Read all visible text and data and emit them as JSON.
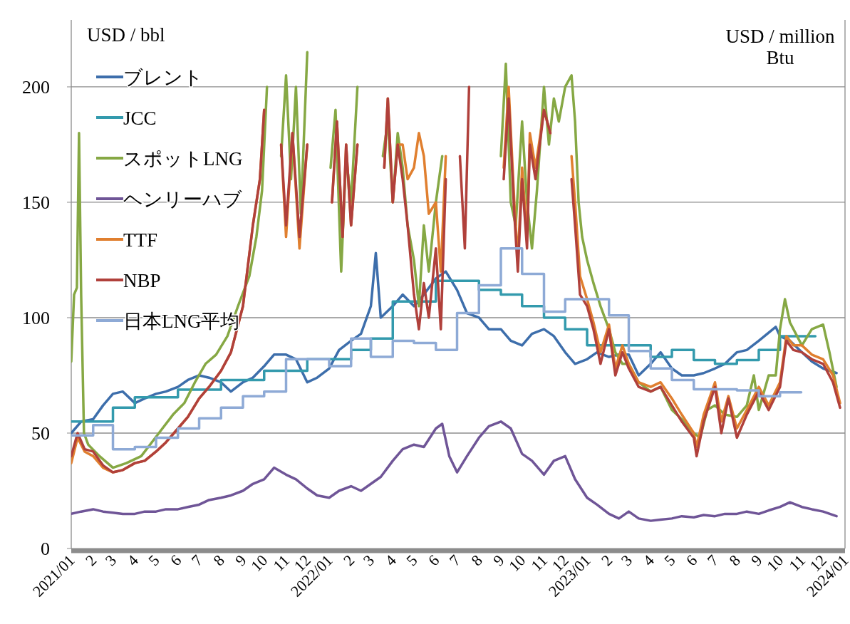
{
  "chart_data": {
    "type": "line",
    "ylabel": "USD  / bbl",
    "annotations": [
      "USD / million Btu"
    ],
    "ylim": [
      0,
      229
    ],
    "yticks": [
      0,
      50,
      100,
      150,
      200
    ],
    "xlim": [
      "2021-01-01",
      "2024-01-01"
    ],
    "xticks": [
      {
        "value": "2021-01",
        "label": "2021/01"
      },
      {
        "value": "2021-02",
        "label": "2"
      },
      {
        "value": "2021-03",
        "label": "3"
      },
      {
        "value": "2021-04",
        "label": "4"
      },
      {
        "value": "2021-05",
        "label": "5"
      },
      {
        "value": "2021-06",
        "label": "6"
      },
      {
        "value": "2021-07",
        "label": "7"
      },
      {
        "value": "2021-08",
        "label": "8"
      },
      {
        "value": "2021-09",
        "label": "9"
      },
      {
        "value": "2021-10",
        "label": "10"
      },
      {
        "value": "2021-11",
        "label": "11"
      },
      {
        "value": "2021-12",
        "label": "12"
      },
      {
        "value": "2022-01",
        "label": "2022/01"
      },
      {
        "value": "2022-02",
        "label": "2"
      },
      {
        "value": "2022-03",
        "label": "3"
      },
      {
        "value": "2022-04",
        "label": "4"
      },
      {
        "value": "2022-05",
        "label": "5"
      },
      {
        "value": "2022-06",
        "label": "6"
      },
      {
        "value": "2022-07",
        "label": "7"
      },
      {
        "value": "2022-08",
        "label": "8"
      },
      {
        "value": "2022-09",
        "label": "9"
      },
      {
        "value": "2022-10",
        "label": "10"
      },
      {
        "value": "2022-11",
        "label": "11"
      },
      {
        "value": "2022-12",
        "label": "12"
      },
      {
        "value": "2023-01",
        "label": "2023/01"
      },
      {
        "value": "2023-02",
        "label": "2"
      },
      {
        "value": "2023-03",
        "label": "3"
      },
      {
        "value": "2023-04",
        "label": "4"
      },
      {
        "value": "2023-05",
        "label": "5"
      },
      {
        "value": "2023-06",
        "label": "6"
      },
      {
        "value": "2023-07",
        "label": "7"
      },
      {
        "value": "2023-08",
        "label": "8"
      },
      {
        "value": "2023-09",
        "label": "9"
      },
      {
        "value": "2023-10",
        "label": "10"
      },
      {
        "value": "2023-11",
        "label": "11"
      },
      {
        "value": "2023-12",
        "label": "12"
      },
      {
        "value": "2024-01",
        "label": "2024/01"
      }
    ],
    "grid": "y",
    "legend": "top left",
    "series": [
      {
        "name": "ブレント",
        "color": "#3d6eab",
        "type": "line",
        "x": [
          "2021-01-01",
          "2021-01-15",
          "2021-02-01",
          "2021-02-15",
          "2021-03-01",
          "2021-03-15",
          "2021-04-01",
          "2021-04-15",
          "2021-05-01",
          "2021-05-15",
          "2021-06-01",
          "2021-06-15",
          "2021-07-01",
          "2021-07-15",
          "2021-08-01",
          "2021-08-15",
          "2021-09-01",
          "2021-09-15",
          "2021-10-01",
          "2021-10-15",
          "2021-11-01",
          "2021-11-15",
          "2021-12-01",
          "2021-12-15",
          "2022-01-01",
          "2022-01-15",
          "2022-02-01",
          "2022-02-15",
          "2022-03-01",
          "2022-03-08",
          "2022-03-15",
          "2022-04-01",
          "2022-04-15",
          "2022-05-01",
          "2022-05-15",
          "2022-06-01",
          "2022-06-15",
          "2022-07-01",
          "2022-07-15",
          "2022-08-01",
          "2022-08-15",
          "2022-09-01",
          "2022-09-15",
          "2022-10-01",
          "2022-10-15",
          "2022-11-01",
          "2022-11-15",
          "2022-12-01",
          "2022-12-15",
          "2023-01-01",
          "2023-01-15",
          "2023-02-01",
          "2023-02-15",
          "2023-03-01",
          "2023-03-15",
          "2023-04-01",
          "2023-04-15",
          "2023-05-01",
          "2023-05-15",
          "2023-06-01",
          "2023-06-15",
          "2023-07-01",
          "2023-07-15",
          "2023-08-01",
          "2023-08-15",
          "2023-09-01",
          "2023-09-25",
          "2023-10-01",
          "2023-10-15",
          "2023-11-01",
          "2023-11-15",
          "2023-12-01",
          "2023-12-20"
        ],
        "values": [
          50,
          55,
          56,
          62,
          67,
          68,
          63,
          65,
          67,
          68,
          70,
          73,
          75,
          74,
          72,
          68,
          72,
          74,
          79,
          84,
          84,
          82,
          72,
          74,
          78,
          86,
          90,
          93,
          105,
          128,
          100,
          105,
          110,
          105,
          110,
          117,
          120,
          112,
          102,
          100,
          95,
          95,
          90,
          88,
          93,
          95,
          92,
          85,
          80,
          82,
          85,
          83,
          84,
          84,
          75,
          80,
          85,
          78,
          75,
          75,
          76,
          78,
          80,
          85,
          86,
          90,
          96,
          92,
          90,
          85,
          81,
          78,
          76
        ]
      },
      {
        "name": "JCC",
        "color": "#339aad",
        "type": "step",
        "x": [
          "2021-01-01",
          "2021-02-01",
          "2021-03-01",
          "2021-04-01",
          "2021-05-01",
          "2021-06-01",
          "2021-07-01",
          "2021-08-01",
          "2021-09-01",
          "2021-10-01",
          "2021-11-01",
          "2021-12-01",
          "2022-01-01",
          "2022-02-01",
          "2022-03-01",
          "2022-04-01",
          "2022-05-01",
          "2022-06-01",
          "2022-07-01",
          "2022-08-01",
          "2022-09-01",
          "2022-10-01",
          "2022-11-01",
          "2022-12-01",
          "2023-01-01",
          "2023-02-01",
          "2023-03-01",
          "2023-04-01",
          "2023-05-01",
          "2023-06-01",
          "2023-07-01",
          "2023-08-01",
          "2023-09-01",
          "2023-10-01",
          "2023-11-01",
          "2023-11-20"
        ],
        "values": [
          55,
          55,
          61,
          65.5,
          65.5,
          68.8,
          68.8,
          73,
          73,
          77,
          77,
          82,
          82,
          86,
          91,
          107,
          107,
          116,
          116,
          112,
          110,
          105,
          100,
          95,
          88,
          88,
          88,
          83,
          86,
          81.6,
          80,
          81.6,
          86,
          92,
          92,
          92
        ]
      },
      {
        "name": "スポットLNG",
        "color": "#86a844",
        "type": "line",
        "x": [
          "2021-01-01",
          "2021-01-05",
          "2021-01-09",
          "2021-01-12",
          "2021-01-15",
          "2021-01-19",
          "2021-01-25",
          "2021-02-10",
          "2021-03-01",
          "2021-03-20",
          "2021-04-10",
          "2021-04-25",
          "2021-05-10",
          "2021-05-25",
          "2021-06-10",
          "2021-06-25",
          "2021-07-10",
          "2021-07-25",
          "2021-08-10",
          "2021-08-25",
          "2021-09-10",
          "2021-09-20",
          "2021-09-28",
          "2021-10-05",
          "2021-10-08",
          "2021-10-12",
          "2021-10-18",
          "2021-10-25",
          "2021-11-01",
          "2021-11-08",
          "2021-11-15",
          "2021-11-22",
          "2021-12-01",
          "2021-12-08",
          "2021-12-15",
          "2021-12-25",
          "2022-01-03",
          "2022-01-10",
          "2022-01-18",
          "2022-01-25",
          "2022-02-01",
          "2022-02-10",
          "2022-02-18",
          "2022-03-01",
          "2022-03-10",
          "2022-03-18",
          "2022-03-25",
          "2022-04-01",
          "2022-04-08",
          "2022-04-15",
          "2022-04-22",
          "2022-05-01",
          "2022-05-08",
          "2022-05-15",
          "2022-05-22",
          "2022-06-01",
          "2022-06-10",
          "2022-06-18",
          "2022-07-01",
          "2022-08-25",
          "2022-09-01",
          "2022-09-08",
          "2022-09-15",
          "2022-09-22",
          "2022-10-01",
          "2022-10-08",
          "2022-10-15",
          "2022-10-22",
          "2022-11-01",
          "2022-11-08",
          "2022-11-15",
          "2022-11-22",
          "2022-12-01",
          "2022-12-10",
          "2022-12-15",
          "2022-12-20",
          "2022-12-25",
          "2023-01-01",
          "2023-01-10",
          "2023-01-20",
          "2023-02-01",
          "2023-02-10",
          "2023-02-20",
          "2023-03-01",
          "2023-03-15",
          "2023-04-01",
          "2023-04-15",
          "2023-05-01",
          "2023-05-15",
          "2023-06-01",
          "2023-06-10",
          "2023-06-20",
          "2023-07-01",
          "2023-07-15",
          "2023-08-01",
          "2023-08-15",
          "2023-08-25",
          "2023-09-01",
          "2023-09-15",
          "2023-09-25",
          "2023-10-01",
          "2023-10-08",
          "2023-10-15",
          "2023-11-01",
          "2023-11-15",
          "2023-12-01",
          "2023-12-10",
          "2023-12-20"
        ],
        "values": [
          81,
          110,
          113,
          180,
          110,
          50,
          45,
          40,
          35,
          37,
          40,
          46,
          52,
          58,
          63,
          72,
          80,
          84,
          92,
          105,
          118,
          135,
          155,
          200,
          null,
          null,
          null,
          170,
          205,
          160,
          200,
          145,
          215,
          null,
          null,
          null,
          165,
          190,
          120,
          170,
          150,
          200,
          null,
          null,
          null,
          170,
          185,
          150,
          180,
          165,
          140,
          125,
          105,
          140,
          120,
          150,
          170,
          null,
          null,
          null,
          170,
          210,
          150,
          140,
          185,
          150,
          130,
          155,
          200,
          175,
          195,
          185,
          200,
          205,
          185,
          150,
          135,
          125,
          115,
          105,
          95,
          85,
          80,
          80,
          72,
          68,
          70,
          60,
          56,
          50,
          48,
          60,
          62,
          58,
          57,
          62,
          75,
          60,
          75,
          75,
          95,
          108,
          98,
          88,
          95,
          97,
          85,
          70
        ]
      },
      {
        "name": "ヘンリーハブ",
        "color": "#6f5597",
        "type": "line",
        "x": [
          "2021-01-01",
          "2021-01-15",
          "2021-02-01",
          "2021-02-15",
          "2021-03-01",
          "2021-03-15",
          "2021-04-01",
          "2021-04-15",
          "2021-05-01",
          "2021-05-15",
          "2021-06-01",
          "2021-06-15",
          "2021-07-01",
          "2021-07-15",
          "2021-08-01",
          "2021-08-15",
          "2021-09-01",
          "2021-09-15",
          "2021-10-01",
          "2021-10-15",
          "2021-11-01",
          "2021-11-15",
          "2021-12-01",
          "2021-12-15",
          "2022-01-01",
          "2022-01-15",
          "2022-02-01",
          "2022-02-15",
          "2022-03-01",
          "2022-03-15",
          "2022-04-01",
          "2022-04-15",
          "2022-05-01",
          "2022-05-15",
          "2022-06-01",
          "2022-06-10",
          "2022-06-20",
          "2022-07-01",
          "2022-07-15",
          "2022-08-01",
          "2022-08-15",
          "2022-09-01",
          "2022-09-15",
          "2022-10-01",
          "2022-10-15",
          "2022-11-01",
          "2022-11-15",
          "2022-12-01",
          "2022-12-15",
          "2023-01-01",
          "2023-01-15",
          "2023-02-01",
          "2023-02-15",
          "2023-03-01",
          "2023-03-15",
          "2023-04-01",
          "2023-04-15",
          "2023-05-01",
          "2023-05-15",
          "2023-06-01",
          "2023-06-15",
          "2023-07-01",
          "2023-07-15",
          "2023-08-01",
          "2023-08-15",
          "2023-09-01",
          "2023-09-15",
          "2023-10-01",
          "2023-10-15",
          "2023-11-01",
          "2023-11-15",
          "2023-12-01",
          "2023-12-20"
        ],
        "values": [
          15,
          16,
          17,
          16,
          15.5,
          15,
          15,
          16,
          16,
          17,
          17,
          18,
          19,
          21,
          22,
          23,
          25,
          28,
          30,
          35,
          32,
          30,
          26,
          23,
          22,
          25,
          27,
          25,
          28,
          31,
          38,
          43,
          45,
          44,
          52,
          54,
          40,
          33,
          40,
          48,
          53,
          55,
          52,
          41,
          38,
          32,
          38,
          40,
          30,
          22,
          19,
          15,
          13,
          16,
          13,
          12,
          12.5,
          13,
          14,
          13.5,
          14.5,
          14,
          15,
          15,
          16,
          15,
          16.5,
          18,
          20,
          18,
          17,
          16,
          14
        ]
      },
      {
        "name": "TTF",
        "color": "#e07f2f",
        "type": "line",
        "x": [
          "2021-01-01",
          "2021-01-10",
          "2021-01-20",
          "2021-02-01",
          "2021-02-15",
          "2021-03-01",
          "2021-03-15",
          "2021-04-01",
          "2021-04-15",
          "2021-05-01",
          "2021-05-15",
          "2021-06-01",
          "2021-06-15",
          "2021-07-01",
          "2021-07-15",
          "2021-08-01",
          "2021-08-15",
          "2021-09-01",
          "2021-09-15",
          "2021-09-25",
          "2021-10-01",
          "2021-10-06",
          "2021-10-12",
          "2021-10-20",
          "2021-10-25",
          "2021-11-01",
          "2021-11-10",
          "2021-11-20",
          "2021-12-01",
          "2021-12-08",
          "2021-12-18",
          "2021-12-28",
          "2022-01-05",
          "2022-01-12",
          "2022-01-20",
          "2022-01-25",
          "2022-02-01",
          "2022-02-10",
          "2022-02-18",
          "2022-03-01",
          "2022-03-15",
          "2022-03-20",
          "2022-03-25",
          "2022-04-01",
          "2022-04-08",
          "2022-04-15",
          "2022-04-22",
          "2022-05-01",
          "2022-05-08",
          "2022-05-15",
          "2022-05-22",
          "2022-06-01",
          "2022-06-08",
          "2022-06-15",
          "2022-06-18",
          "2022-07-10",
          "2022-08-30",
          "2022-09-05",
          "2022-09-12",
          "2022-09-20",
          "2022-09-25",
          "2022-10-01",
          "2022-10-08",
          "2022-10-12",
          "2022-10-20",
          "2022-11-01",
          "2022-11-10",
          "2022-11-15",
          "2022-11-25",
          "2022-12-05",
          "2022-12-10",
          "2022-12-15",
          "2022-12-22",
          "2023-01-01",
          "2023-01-10",
          "2023-01-20",
          "2023-02-01",
          "2023-02-10",
          "2023-02-20",
          "2023-03-01",
          "2023-03-15",
          "2023-04-01",
          "2023-04-15",
          "2023-05-01",
          "2023-05-15",
          "2023-06-01",
          "2023-06-05",
          "2023-06-15",
          "2023-07-01",
          "2023-07-10",
          "2023-07-20",
          "2023-08-01",
          "2023-08-15",
          "2023-09-01",
          "2023-09-15",
          "2023-10-01",
          "2023-10-10",
          "2023-10-20",
          "2023-11-01",
          "2023-11-15",
          "2023-12-01",
          "2023-12-15",
          "2023-12-25"
        ],
        "values": [
          37,
          48,
          42,
          40,
          35,
          33,
          34,
          37,
          38,
          42,
          46,
          52,
          57,
          65,
          70,
          77,
          85,
          105,
          140,
          160,
          190,
          null,
          null,
          null,
          175,
          135,
          180,
          130,
          175,
          null,
          null,
          null,
          150,
          185,
          135,
          175,
          140,
          175,
          null,
          null,
          null,
          165,
          195,
          150,
          175,
          175,
          160,
          165,
          180,
          170,
          145,
          150,
          120,
          170,
          null,
          null,
          null,
          165,
          200,
          150,
          125,
          165,
          135,
          180,
          165,
          190,
          180,
          null,
          null,
          null,
          170,
          150,
          118,
          108,
          98,
          85,
          97,
          78,
          88,
          80,
          72,
          70,
          72,
          65,
          58,
          50,
          44,
          58,
          72,
          55,
          66,
          52,
          60,
          70,
          62,
          72,
          92,
          88,
          88,
          84,
          82,
          75,
          63
        ]
      },
      {
        "name": "NBP",
        "color": "#b0403b",
        "type": "line",
        "x": [
          "2021-01-01",
          "2021-01-10",
          "2021-01-20",
          "2021-02-01",
          "2021-02-15",
          "2021-03-01",
          "2021-03-15",
          "2021-04-01",
          "2021-04-15",
          "2021-05-01",
          "2021-05-15",
          "2021-06-01",
          "2021-06-15",
          "2021-07-01",
          "2021-07-15",
          "2021-08-01",
          "2021-08-15",
          "2021-09-01",
          "2021-09-15",
          "2021-09-25",
          "2021-10-01",
          "2021-10-06",
          "2021-10-12",
          "2021-10-20",
          "2021-10-25",
          "2021-11-01",
          "2021-11-10",
          "2021-11-20",
          "2021-12-01",
          "2021-12-08",
          "2021-12-18",
          "2021-12-28",
          "2022-01-05",
          "2022-01-12",
          "2022-01-20",
          "2022-01-25",
          "2022-02-01",
          "2022-02-10",
          "2022-02-18",
          "2022-03-01",
          "2022-03-15",
          "2022-03-20",
          "2022-03-25",
          "2022-04-01",
          "2022-04-08",
          "2022-04-15",
          "2022-04-22",
          "2022-05-01",
          "2022-05-08",
          "2022-05-15",
          "2022-05-22",
          "2022-06-01",
          "2022-06-08",
          "2022-06-15",
          "2022-06-20",
          "2022-06-24",
          "2022-06-28",
          "2022-07-05",
          "2022-07-12",
          "2022-07-18",
          "2022-07-25",
          "2022-08-15",
          "2022-09-01",
          "2022-09-05",
          "2022-09-12",
          "2022-09-20",
          "2022-09-25",
          "2022-10-01",
          "2022-10-08",
          "2022-10-12",
          "2022-10-20",
          "2022-11-01",
          "2022-11-10",
          "2022-11-15",
          "2022-11-25",
          "2022-12-05",
          "2022-12-10",
          "2022-12-15",
          "2022-12-22",
          "2023-01-01",
          "2023-01-10",
          "2023-01-20",
          "2023-02-01",
          "2023-02-10",
          "2023-02-20",
          "2023-03-01",
          "2023-03-15",
          "2023-04-01",
          "2023-04-15",
          "2023-05-01",
          "2023-05-15",
          "2023-06-01",
          "2023-06-05",
          "2023-06-15",
          "2023-07-01",
          "2023-07-10",
          "2023-07-20",
          "2023-08-01",
          "2023-08-15",
          "2023-09-01",
          "2023-09-15",
          "2023-10-01",
          "2023-10-10",
          "2023-10-20",
          "2023-11-01",
          "2023-11-15",
          "2023-12-01",
          "2023-12-15",
          "2023-12-25"
        ],
        "values": [
          40,
          50,
          43,
          42,
          36,
          33,
          34,
          37,
          38,
          42,
          46,
          52,
          57,
          65,
          70,
          77,
          85,
          105,
          140,
          160,
          190,
          null,
          null,
          null,
          175,
          140,
          180,
          135,
          175,
          null,
          null,
          null,
          150,
          185,
          135,
          175,
          140,
          175,
          null,
          null,
          null,
          165,
          195,
          150,
          175,
          160,
          140,
          110,
          95,
          115,
          100,
          130,
          95,
          160,
          null,
          null,
          null,
          170,
          130,
          200,
          null,
          null,
          null,
          160,
          195,
          145,
          120,
          160,
          130,
          175,
          160,
          190,
          180,
          null,
          null,
          null,
          160,
          140,
          110,
          105,
          95,
          80,
          95,
          75,
          85,
          78,
          70,
          68,
          70,
          62,
          55,
          48,
          40,
          55,
          70,
          50,
          65,
          48,
          58,
          68,
          60,
          70,
          90,
          86,
          85,
          82,
          80,
          72,
          61
        ]
      },
      {
        "name": "日本LNG平均",
        "color": "#8eaad6",
        "type": "step",
        "x": [
          "2021-01-01",
          "2021-02-01",
          "2021-03-01",
          "2021-04-01",
          "2021-05-01",
          "2021-06-01",
          "2021-07-01",
          "2021-08-01",
          "2021-09-01",
          "2021-10-01",
          "2021-11-01",
          "2021-12-01",
          "2022-01-01",
          "2022-02-01",
          "2022-03-01",
          "2022-04-01",
          "2022-05-01",
          "2022-06-01",
          "2022-07-01",
          "2022-08-01",
          "2022-09-01",
          "2022-10-01",
          "2022-11-01",
          "2022-12-01",
          "2023-01-01",
          "2023-02-01",
          "2023-03-01",
          "2023-04-01",
          "2023-05-01",
          "2023-06-01",
          "2023-07-01",
          "2023-08-01",
          "2023-09-01",
          "2023-10-01",
          "2023-10-31"
        ],
        "values": [
          49,
          53.5,
          43,
          44,
          48,
          52,
          56.4,
          61,
          66,
          68,
          82,
          82,
          79,
          91,
          83,
          90,
          89,
          86,
          102,
          114,
          130,
          119,
          102.6,
          108,
          108,
          101,
          85.6,
          78,
          73,
          69,
          69,
          68.5,
          66,
          67.7,
          67.7
        ]
      }
    ]
  }
}
